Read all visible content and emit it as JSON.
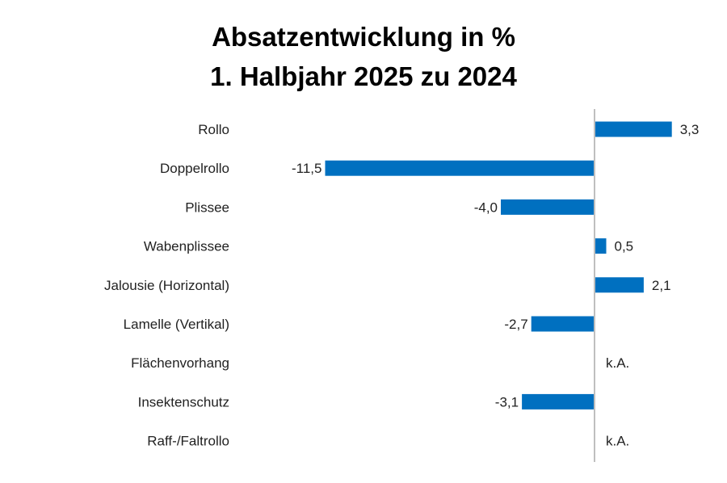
{
  "chart_data": {
    "type": "bar",
    "orientation": "horizontal",
    "title": [
      "Absatzentwicklung in %",
      "1. Halbjahr 2025 zu 2024"
    ],
    "categories": [
      "Rollo",
      "Doppelrollo",
      "Plissee",
      "Wabenplissee",
      "Jalousie (Horizontal)",
      "Lamelle (Vertikal)",
      "Flächenvorhang",
      "Insektenschutz",
      "Raff-/Faltrollo"
    ],
    "values": [
      3.3,
      -11.5,
      -4.0,
      0.5,
      2.1,
      -2.7,
      null,
      -3.1,
      null
    ],
    "data_labels": [
      "3,3",
      "-11,5",
      "-4,0",
      "0,5",
      "2,1",
      "-2,7",
      "k.A.",
      "-3,1",
      "k.A."
    ],
    "xlim": [
      -12,
      5
    ],
    "grid": false,
    "legend": "none",
    "colors": {
      "bar": "#0070C0",
      "axis": "#BFBFBF"
    }
  }
}
